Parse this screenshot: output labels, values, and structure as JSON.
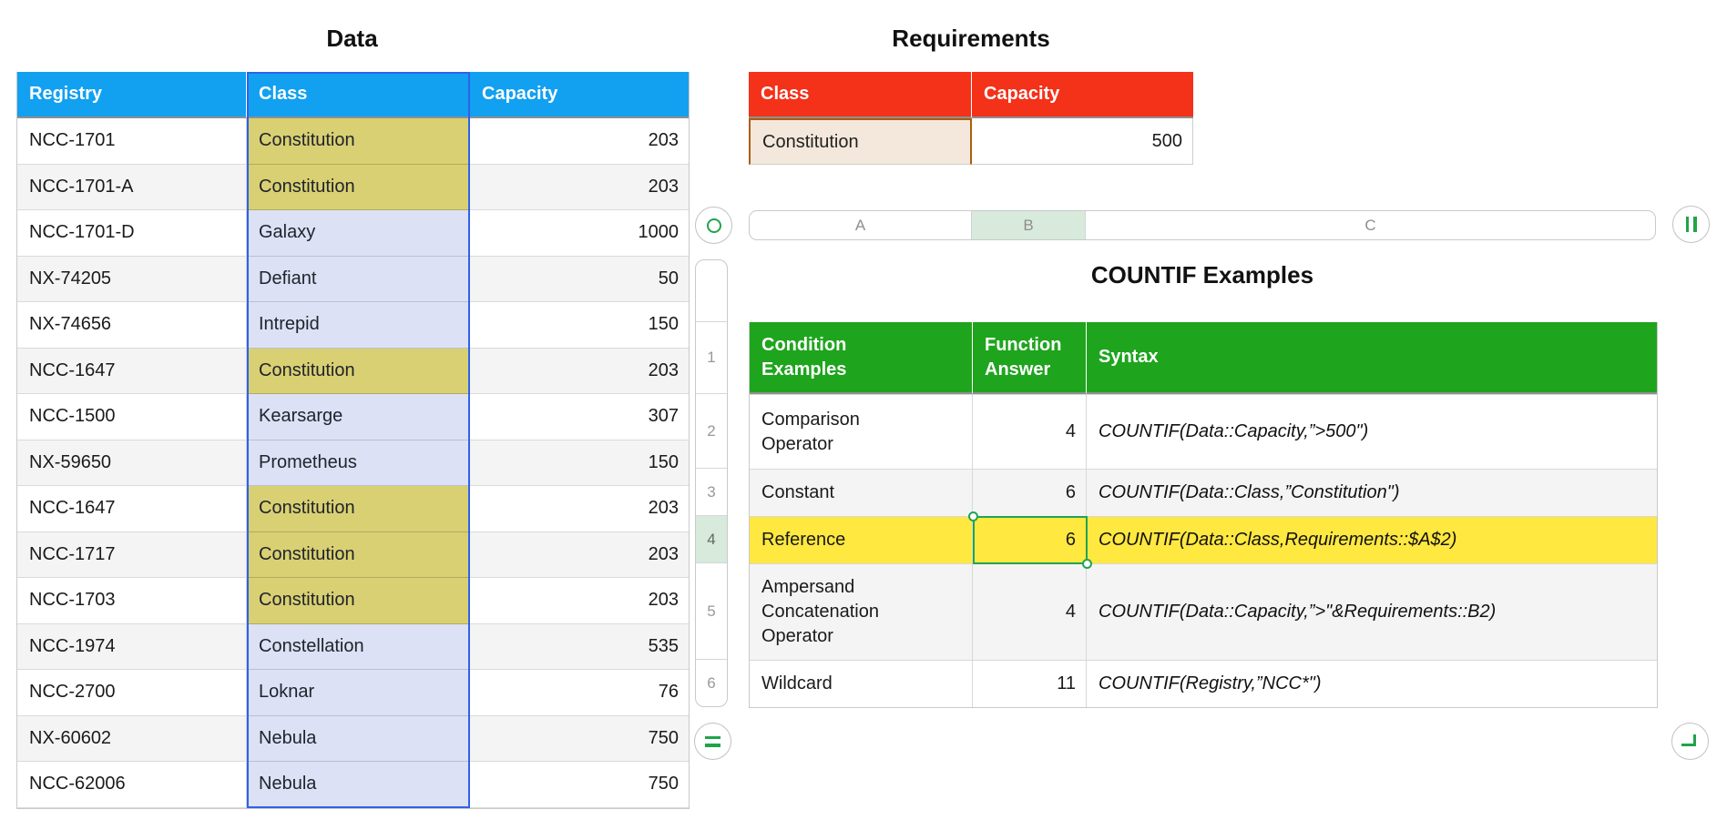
{
  "data_table": {
    "title": "Data",
    "headers": [
      "Registry",
      "Class",
      "Capacity"
    ],
    "rows": [
      {
        "registry": "NCC-1701",
        "class": "Constitution",
        "capacity": "203"
      },
      {
        "registry": "NCC-1701-A",
        "class": "Constitution",
        "capacity": "203"
      },
      {
        "registry": "NCC-1701-D",
        "class": "Galaxy",
        "capacity": "1000"
      },
      {
        "registry": "NX-74205",
        "class": "Defiant",
        "capacity": "50"
      },
      {
        "registry": "NX-74656",
        "class": "Intrepid",
        "capacity": "150"
      },
      {
        "registry": "NCC-1647",
        "class": "Constitution",
        "capacity": "203"
      },
      {
        "registry": "NCC-1500",
        "class": "Kearsarge",
        "capacity": "307"
      },
      {
        "registry": "NX-59650",
        "class": "Prometheus",
        "capacity": "150"
      },
      {
        "registry": "NCC-1647",
        "class": "Constitution",
        "capacity": "203"
      },
      {
        "registry": "NCC-1717",
        "class": "Constitution",
        "capacity": "203"
      },
      {
        "registry": "NCC-1703",
        "class": "Constitution",
        "capacity": "203"
      },
      {
        "registry": "NCC-1974",
        "class": "Constellation",
        "capacity": "535"
      },
      {
        "registry": "NCC-2700",
        "class": "Loknar",
        "capacity": "76"
      },
      {
        "registry": "NX-60602",
        "class": "Nebula",
        "capacity": "750"
      },
      {
        "registry": "NCC-62006",
        "class": "Nebula",
        "capacity": "750"
      }
    ]
  },
  "requirements_table": {
    "title": "Requirements",
    "headers": [
      "Class",
      "Capacity"
    ],
    "row": {
      "class": "Constitution",
      "capacity": "500"
    }
  },
  "sheet": {
    "column_ruler": [
      "A",
      "B",
      "C"
    ],
    "selected_column": "B",
    "row_numbers": [
      "1",
      "2",
      "3",
      "4",
      "5",
      "6"
    ],
    "selected_row": "4"
  },
  "countif_table": {
    "title": "COUNTIF Examples",
    "headers": [
      "Condition Examples",
      "Function Answer",
      "Syntax"
    ],
    "rows": [
      {
        "condition": "Comparison Operator",
        "answer": "4",
        "syntax": "COUNTIF(Data::Capacity,”>500\")",
        "highlighted": false
      },
      {
        "condition": "Constant",
        "answer": "6",
        "syntax": "COUNTIF(Data::Class,”Constitution\")",
        "highlighted": false
      },
      {
        "condition": "Reference",
        "answer": "6",
        "syntax": "COUNTIF(Data::Class,Requirements::$A$2)",
        "highlighted": true
      },
      {
        "condition": "Ampersand Concatenation Operator",
        "answer": "4",
        "syntax": "COUNTIF(Data::Capacity,”>\"&Requirements::B2)",
        "highlighted": false
      },
      {
        "condition": "Wildcard",
        "answer": "11",
        "syntax": "COUNTIF(Registry,”NCC*\")",
        "highlighted": false
      }
    ]
  },
  "icons": {
    "table_handle": "circle-outline",
    "add_column_handle": "double-vertical-bars",
    "add_row_handle": "double-horizontal-bars",
    "resize_handle": "corner-bracket"
  },
  "colors": {
    "data_header": "#12A0F1",
    "requirements_header": "#F43119",
    "countif_header": "#1FA41E",
    "constitution_cell": "#D9D073",
    "class_cell": "#DDE1F5",
    "selected_row_highlight": "#FFE840",
    "reference_cell_bg": "#F3E8DB",
    "reference_cell_border": "#AC5E10",
    "selection_green": "#21A356",
    "selection_blue": "#2E62E9",
    "ruler_selected": "#D7EADC"
  }
}
